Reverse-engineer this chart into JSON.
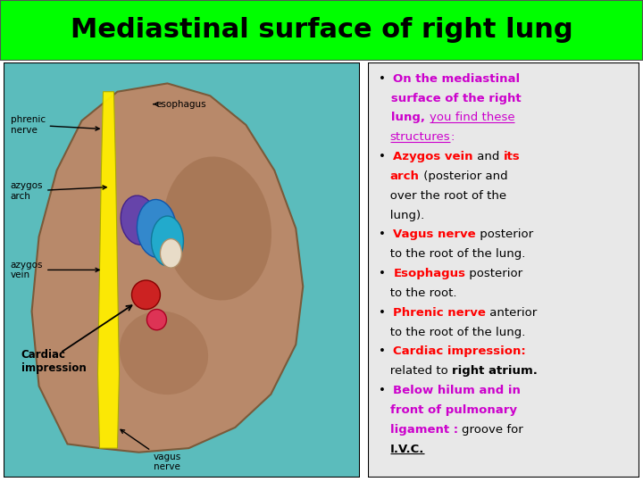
{
  "title": "Mediastinal surface of right lung",
  "title_bg": "#00ff00",
  "title_color": "#000000",
  "title_fontsize": 22,
  "bg_color": "#ffffff",
  "panel_border_color": "#000000",
  "right_bg": "#e8e8e8",
  "text_lines": [
    [
      {
        "t": "•  ",
        "c": "#000000",
        "b": false,
        "u": false
      },
      {
        "t": "On the mediastinal",
        "c": "#cc00cc",
        "b": true,
        "u": false
      }
    ],
    [
      {
        "t": "   surface of the right",
        "c": "#cc00cc",
        "b": true,
        "u": false
      }
    ],
    [
      {
        "t": "   lung, ",
        "c": "#cc00cc",
        "b": true,
        "u": false
      },
      {
        "t": "you find these",
        "c": "#cc00cc",
        "b": false,
        "u": true
      }
    ],
    [
      {
        "t": "   ",
        "c": "#000000",
        "b": false,
        "u": false
      },
      {
        "t": "structures",
        "c": "#cc00cc",
        "b": false,
        "u": true
      },
      {
        "t": ":",
        "c": "#cc00cc",
        "b": false,
        "u": false
      }
    ],
    [
      {
        "t": "•  ",
        "c": "#000000",
        "b": false,
        "u": false
      },
      {
        "t": "Azygos vein",
        "c": "#ff0000",
        "b": true,
        "u": false
      },
      {
        "t": " and ",
        "c": "#000000",
        "b": false,
        "u": false
      },
      {
        "t": "its",
        "c": "#ff0000",
        "b": true,
        "u": false
      }
    ],
    [
      {
        "t": "   ",
        "c": "#000000",
        "b": false,
        "u": false
      },
      {
        "t": "arch",
        "c": "#ff0000",
        "b": true,
        "u": false
      },
      {
        "t": " (posterior and",
        "c": "#000000",
        "b": false,
        "u": false
      }
    ],
    [
      {
        "t": "   over the root of the",
        "c": "#000000",
        "b": false,
        "u": false
      }
    ],
    [
      {
        "t": "   lung).",
        "c": "#000000",
        "b": false,
        "u": false
      }
    ],
    [
      {
        "t": "•  ",
        "c": "#000000",
        "b": false,
        "u": false
      },
      {
        "t": "Vagus nerve",
        "c": "#ff0000",
        "b": true,
        "u": false
      },
      {
        "t": " posterior",
        "c": "#000000",
        "b": false,
        "u": false
      }
    ],
    [
      {
        "t": "   to the root of the lung.",
        "c": "#000000",
        "b": false,
        "u": false
      }
    ],
    [
      {
        "t": "•  ",
        "c": "#000000",
        "b": false,
        "u": false
      },
      {
        "t": "Esophagus",
        "c": "#ff0000",
        "b": true,
        "u": false
      },
      {
        "t": " posterior",
        "c": "#000000",
        "b": false,
        "u": false
      }
    ],
    [
      {
        "t": "   to the root.",
        "c": "#000000",
        "b": false,
        "u": false
      }
    ],
    [
      {
        "t": "•  ",
        "c": "#000000",
        "b": false,
        "u": false
      },
      {
        "t": "Phrenic nerve",
        "c": "#ff0000",
        "b": true,
        "u": false
      },
      {
        "t": " anterior",
        "c": "#000000",
        "b": false,
        "u": false
      }
    ],
    [
      {
        "t": "   to the root of the lung.",
        "c": "#000000",
        "b": false,
        "u": false
      }
    ],
    [
      {
        "t": "•  ",
        "c": "#000000",
        "b": false,
        "u": false
      },
      {
        "t": "Cardiac impression:",
        "c": "#ff0000",
        "b": true,
        "u": false
      }
    ],
    [
      {
        "t": "   related to ",
        "c": "#000000",
        "b": false,
        "u": false
      },
      {
        "t": "right atrium.",
        "c": "#000000",
        "b": true,
        "u": false
      }
    ],
    [
      {
        "t": "•  ",
        "c": "#000000",
        "b": false,
        "u": false
      },
      {
        "t": "Below hilum and in",
        "c": "#cc00cc",
        "b": true,
        "u": false
      }
    ],
    [
      {
        "t": "   ",
        "c": "#000000",
        "b": false,
        "u": false
      },
      {
        "t": "front of pulmonary",
        "c": "#cc00cc",
        "b": true,
        "u": false
      }
    ],
    [
      {
        "t": "   ",
        "c": "#000000",
        "b": false,
        "u": false
      },
      {
        "t": "ligament : ",
        "c": "#cc00cc",
        "b": true,
        "u": false
      },
      {
        "t": "groove for",
        "c": "#000000",
        "b": false,
        "u": false
      }
    ],
    [
      {
        "t": "   ",
        "c": "#000000",
        "b": false,
        "u": false
      },
      {
        "t": "I.V.C.",
        "c": "#000000",
        "b": true,
        "u": true
      }
    ]
  ],
  "lung_color": "#b8896a",
  "lung_edge": "#7a5a3a",
  "teal_bg": "#5bbcbc",
  "yellow_color": "#ffee00",
  "blue_color": "#3388cc",
  "cyan_color": "#22aacc",
  "purple_color": "#6644aa",
  "red_color": "#cc2222",
  "cream_color": "#e8dcc8",
  "fs": 9.5
}
